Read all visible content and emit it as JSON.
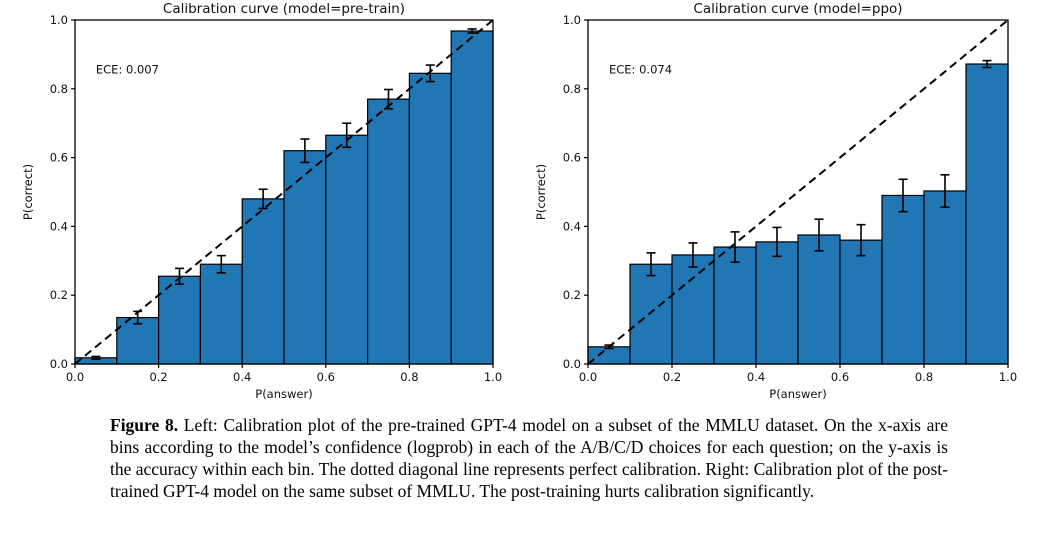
{
  "caption": {
    "label": "Figure 8.",
    "text": " Left: Calibration plot of the pre-trained GPT-4 model on a subset of the MMLU dataset. On the x-axis are bins according to the model’s confidence (logprob) in each of the A/B/C/D choices for each question; on the y-axis is the accuracy within each bin. The dotted diagonal line represents perfect calibration. Right: Calibration plot of the post-trained GPT-4 model on the same subset of MMLU. The post-training hurts calibration significantly."
  },
  "chart_data": [
    {
      "type": "bar",
      "title": "Calibration curve (model=pre-train)",
      "annotation": "ECE: 0.007",
      "xlabel": "P(answer)",
      "ylabel": "P(correct)",
      "xlim": [
        0.0,
        1.0
      ],
      "ylim": [
        0.0,
        1.0
      ],
      "xticks": [
        0.0,
        0.2,
        0.4,
        0.6,
        0.8,
        1.0
      ],
      "yticks": [
        0.0,
        0.2,
        0.4,
        0.6,
        0.8,
        1.0
      ],
      "bin_edges": [
        0.0,
        0.1,
        0.2,
        0.3,
        0.4,
        0.5,
        0.6,
        0.7,
        0.8,
        0.9,
        1.0
      ],
      "values": [
        0.018,
        0.135,
        0.255,
        0.29,
        0.48,
        0.62,
        0.665,
        0.77,
        0.845,
        0.968
      ],
      "errors": [
        0.004,
        0.018,
        0.023,
        0.025,
        0.028,
        0.034,
        0.035,
        0.028,
        0.024,
        0.006
      ],
      "diagonal": true,
      "diagonal_style": "dashed",
      "legend": "none",
      "grid": false,
      "bar_color": "#2077b4",
      "bar_edge_color": "#000000"
    },
    {
      "type": "bar",
      "title": "Calibration curve (model=ppo)",
      "annotation": "ECE: 0.074",
      "xlabel": "P(answer)",
      "ylabel": "P(correct)",
      "xlim": [
        0.0,
        1.0
      ],
      "ylim": [
        0.0,
        1.0
      ],
      "xticks": [
        0.0,
        0.2,
        0.4,
        0.6,
        0.8,
        1.0
      ],
      "yticks": [
        0.0,
        0.2,
        0.4,
        0.6,
        0.8,
        1.0
      ],
      "bin_edges": [
        0.0,
        0.1,
        0.2,
        0.3,
        0.4,
        0.5,
        0.6,
        0.7,
        0.8,
        0.9,
        1.0
      ],
      "values": [
        0.05,
        0.29,
        0.317,
        0.34,
        0.355,
        0.375,
        0.36,
        0.49,
        0.503,
        0.872
      ],
      "errors": [
        0.005,
        0.033,
        0.035,
        0.044,
        0.042,
        0.046,
        0.045,
        0.047,
        0.047,
        0.01
      ],
      "diagonal": true,
      "diagonal_style": "dashed",
      "legend": "none",
      "grid": false,
      "bar_color": "#2077b4",
      "bar_edge_color": "#000000"
    }
  ]
}
